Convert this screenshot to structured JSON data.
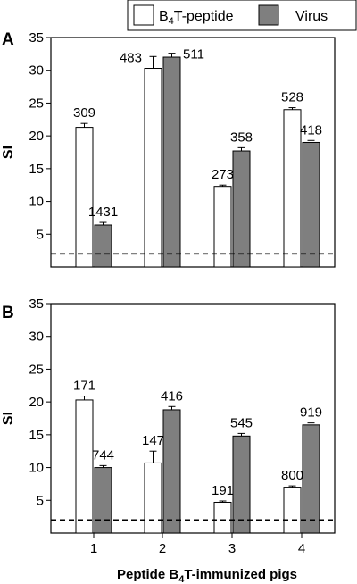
{
  "legend": {
    "series_a": "B4T-peptide",
    "series_a_main": "B",
    "series_a_sub": "4",
    "series_a_rest": "T-peptide",
    "series_b": "Virus"
  },
  "x_axis_label": {
    "full": "Peptide B4T-immunized pigs",
    "pre": "Peptide B",
    "sub": "4",
    "post": "T-immunized pigs"
  },
  "colors": {
    "series_a": "#ffffff",
    "series_b": "#7f7f7f",
    "threshold": "#000000"
  },
  "chart_data": [
    {
      "type": "bar",
      "panel": "A",
      "ylabel": "SI",
      "ylim": [
        0,
        35
      ],
      "yticks": [
        5,
        10,
        15,
        20,
        25,
        30,
        35
      ],
      "categories": [
        "1",
        "2",
        "3",
        "4"
      ],
      "series": [
        {
          "name": "B4T-peptide",
          "values": [
            21.3,
            30.3,
            12.3,
            24.0
          ],
          "errors": [
            0.6,
            1.8,
            0.2,
            0.3
          ],
          "labels": [
            "309",
            "483",
            "273",
            "528"
          ]
        },
        {
          "name": "Virus",
          "values": [
            6.4,
            32.0,
            17.7,
            19.0
          ],
          "errors": [
            0.4,
            0.6,
            0.5,
            0.3
          ],
          "labels": [
            "1431",
            "511",
            "358",
            "418"
          ]
        }
      ],
      "threshold": 2,
      "grid": false,
      "legend": "top-right"
    },
    {
      "type": "bar",
      "panel": "B",
      "ylabel": "SI",
      "ylim": [
        0,
        35
      ],
      "yticks": [
        5,
        10,
        15,
        20,
        25,
        30,
        35
      ],
      "categories": [
        "1",
        "2",
        "3",
        "4"
      ],
      "series": [
        {
          "name": "B4T-peptide",
          "values": [
            20.3,
            10.7,
            4.7,
            7.0
          ],
          "errors": [
            0.6,
            1.8,
            0.2,
            0.2
          ],
          "labels": [
            "171",
            "147",
            "191",
            "800"
          ]
        },
        {
          "name": "Virus",
          "values": [
            10.0,
            18.8,
            14.8,
            16.5
          ],
          "errors": [
            0.3,
            0.5,
            0.4,
            0.3
          ],
          "labels": [
            "744",
            "416",
            "545",
            "919"
          ]
        }
      ],
      "threshold": 2,
      "grid": false,
      "legend": "top-right"
    }
  ]
}
